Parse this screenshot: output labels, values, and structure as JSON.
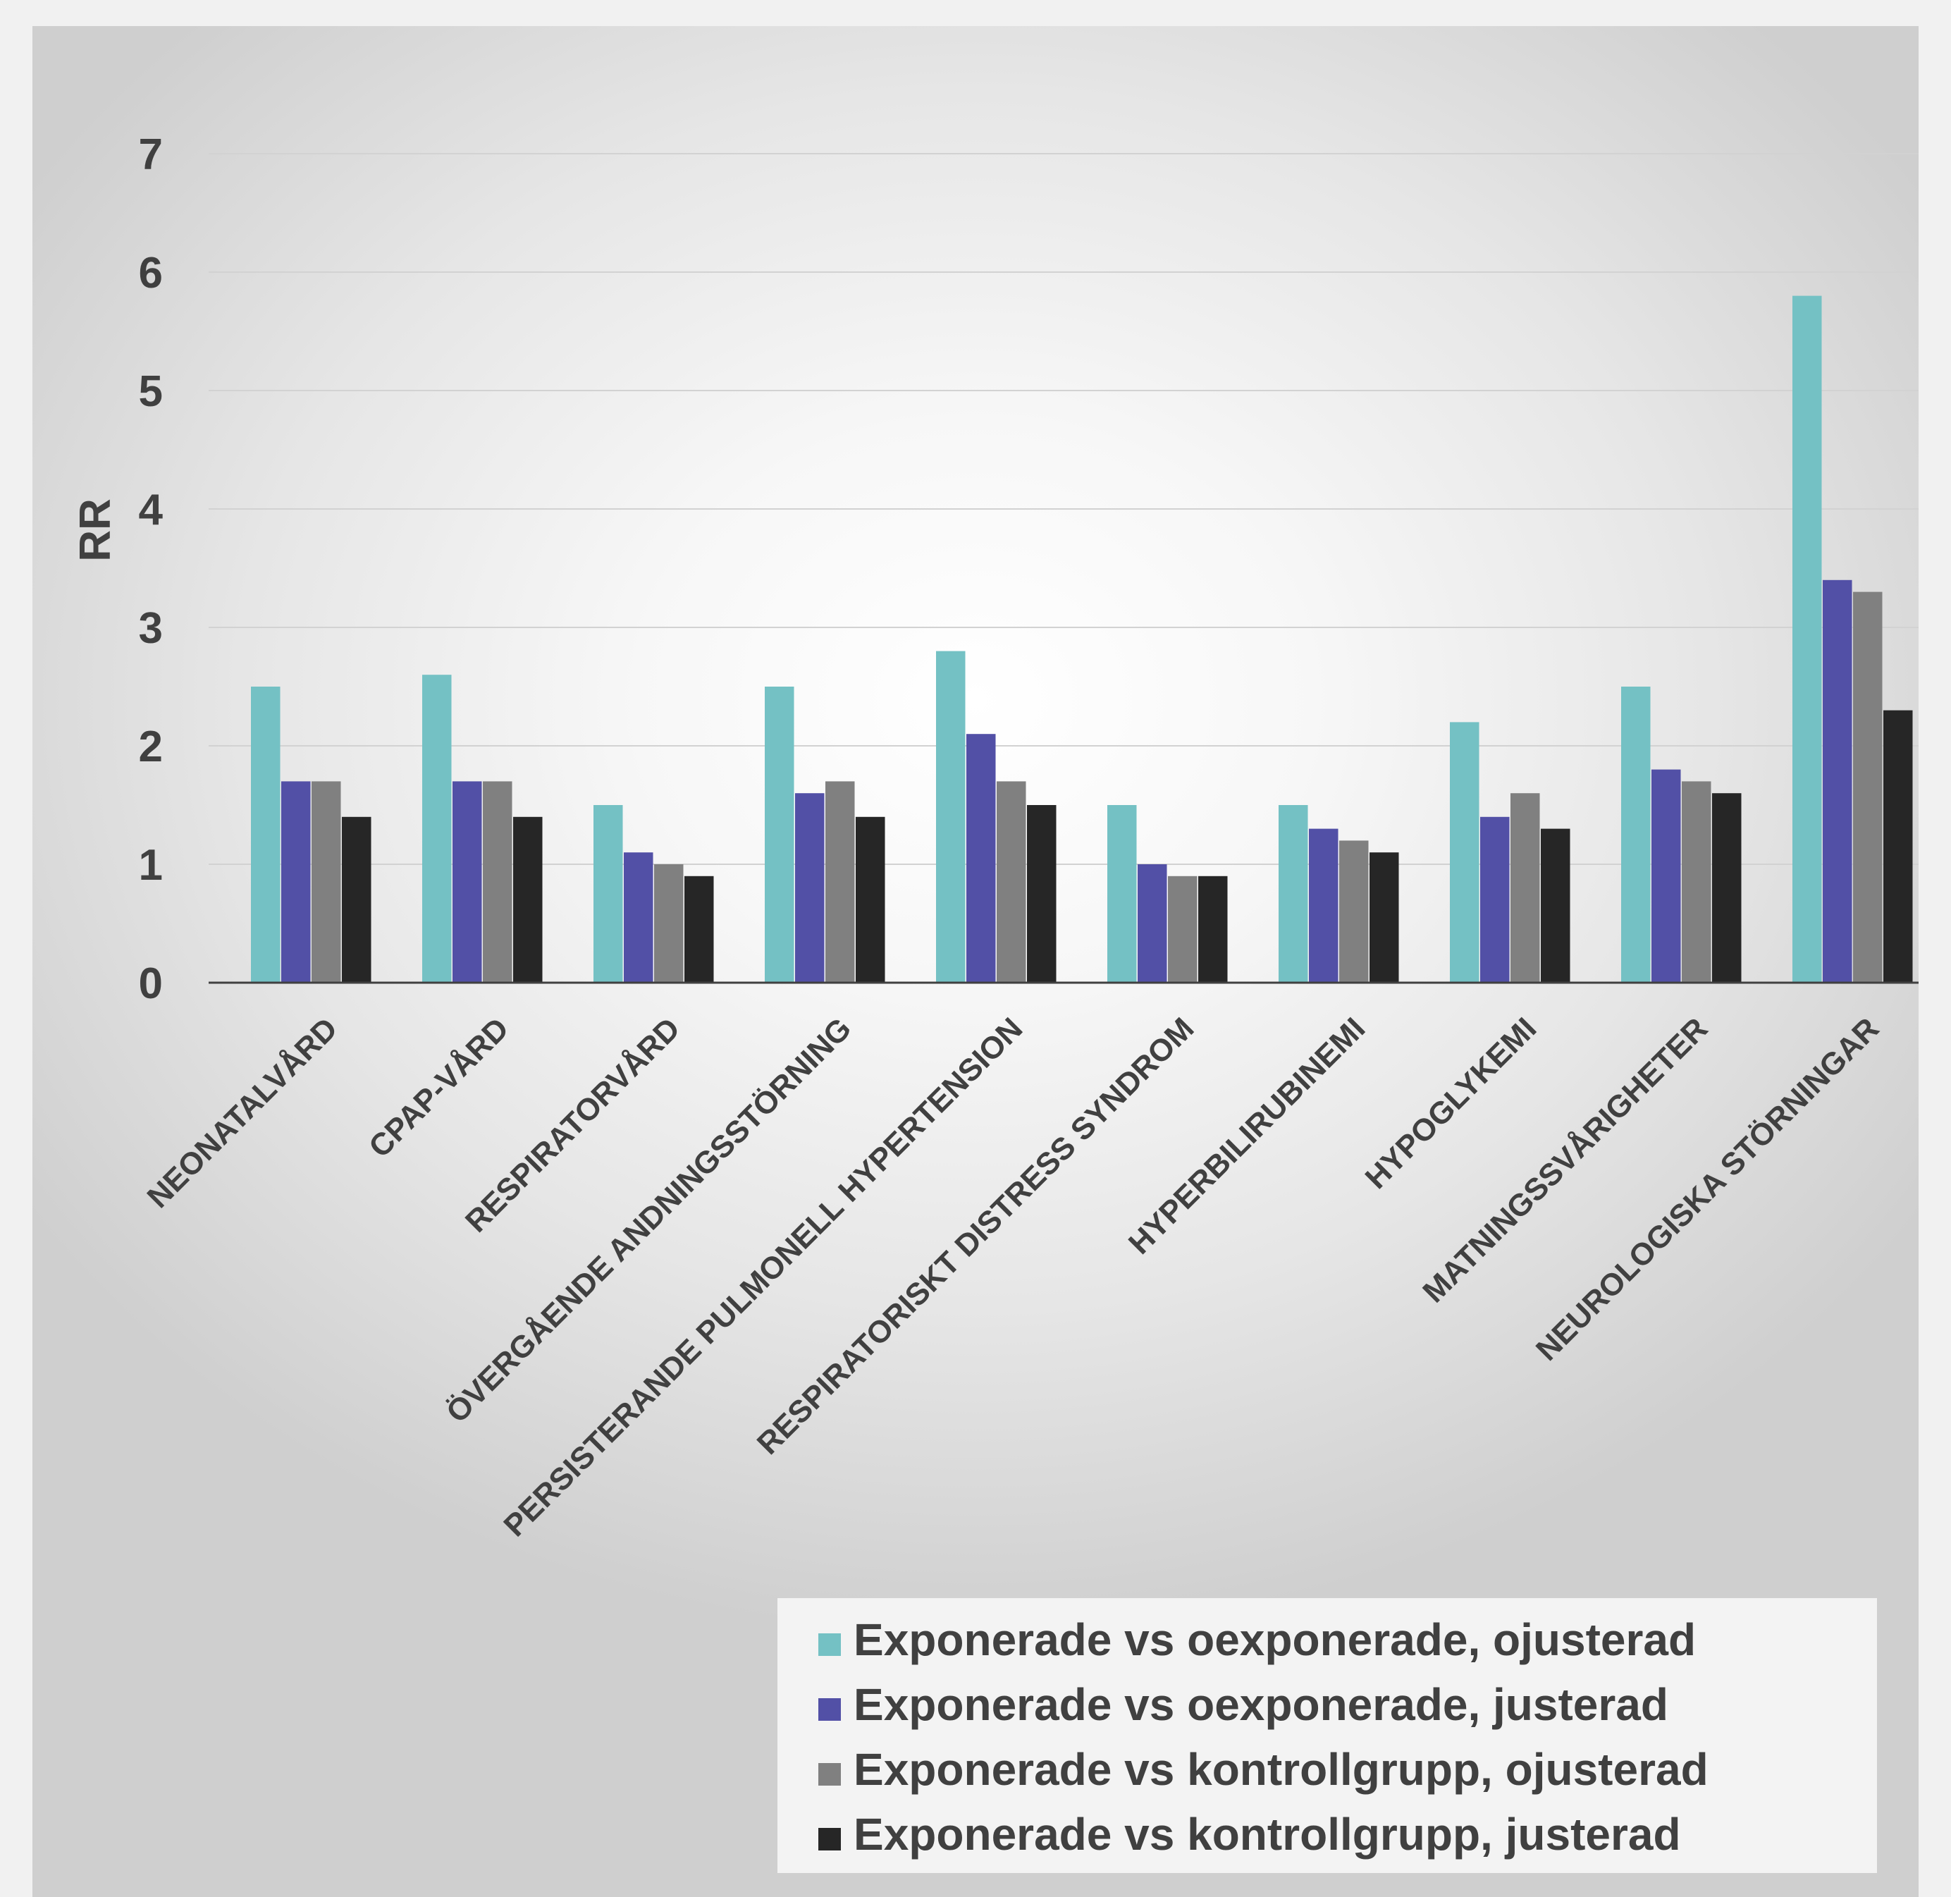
{
  "chart_data": {
    "type": "bar",
    "title": "",
    "xlabel": "",
    "ylabel": "RR",
    "ylim": [
      0,
      7
    ],
    "yticks": [
      0,
      1,
      2,
      3,
      4,
      5,
      6,
      7
    ],
    "grid": true,
    "legend_position": "bottom-right",
    "categories": [
      "NEONATALVÅRD",
      "CPAP-VÅRD",
      "RESPIRATORVÅRD",
      "ÖVERGÅENDE ANDNINGSSTÖRNING",
      "PERSISTERANDE PULMONELL HYPERTENSION",
      "RESPIRATORISKT DISTRESS SYNDROM",
      "HYPERBILIRUBINEMI",
      "HYPOGLYKEMI",
      "MATNINGSSVÅRIGHETER",
      "NEUROLOGISKA STÖRNINGAR"
    ],
    "series": [
      {
        "name": "Exponerade vs oexponerade, ojusterad",
        "color": "#74c1c4",
        "values": [
          2.5,
          2.6,
          1.5,
          2.5,
          2.8,
          1.5,
          1.5,
          2.2,
          2.5,
          5.8
        ]
      },
      {
        "name": "Exponerade vs oexponerade, justerad",
        "color": "#5250a6",
        "values": [
          1.7,
          1.7,
          1.1,
          1.6,
          2.1,
          1.0,
          1.3,
          1.4,
          1.8,
          3.4
        ]
      },
      {
        "name": "Exponerade vs kontrollgrupp, ojusterad",
        "color": "#808080",
        "values": [
          1.7,
          1.7,
          1.0,
          1.7,
          1.7,
          0.9,
          1.2,
          1.6,
          1.7,
          3.3
        ]
      },
      {
        "name": "Exponerade vs kontrollgrupp, justerad",
        "color": "#262626",
        "values": [
          1.4,
          1.4,
          0.9,
          1.4,
          1.5,
          0.9,
          1.1,
          1.3,
          1.6,
          2.3
        ]
      }
    ]
  }
}
